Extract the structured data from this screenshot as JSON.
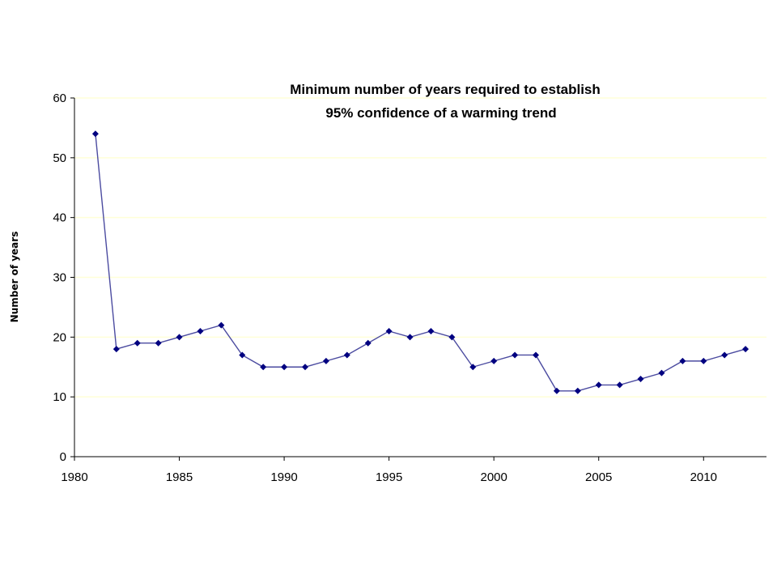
{
  "chart_data": {
    "type": "line",
    "title": "Minimum number of years required to establish\n95% confidence of a warming trend",
    "title_lines": [
      "Minimum number of years required to establish",
      "95% confidence of a warming trend"
    ],
    "xlabel": "",
    "ylabel": "Number of years",
    "xlim": [
      1980,
      2013
    ],
    "ylim": [
      0,
      60
    ],
    "x_ticks": [
      1980,
      1985,
      1990,
      1995,
      2000,
      2005,
      2010
    ],
    "y_ticks": [
      0,
      10,
      20,
      30,
      40,
      50,
      60
    ],
    "grid": "horizontal",
    "legend": "none",
    "colors": {
      "series": "#000080",
      "line": "#4b4ba0",
      "grid": "#ffffd8",
      "axis": "#000000"
    },
    "series": [
      {
        "name": "Minimum number of years",
        "marker": "diamond",
        "x": [
          1981,
          1982,
          1983,
          1984,
          1985,
          1986,
          1987,
          1988,
          1989,
          1990,
          1991,
          1992,
          1993,
          1994,
          1995,
          1996,
          1997,
          1998,
          1999,
          2000,
          2001,
          2002,
          2003,
          2004,
          2005,
          2006,
          2007,
          2008,
          2009,
          2010,
          2011,
          2012
        ],
        "values": [
          54,
          18,
          19,
          19,
          20,
          21,
          22,
          17,
          15,
          15,
          15,
          16,
          17,
          19,
          21,
          20,
          21,
          20,
          15,
          16,
          17,
          17,
          11,
          11,
          12,
          12,
          13,
          14,
          16,
          16,
          17,
          18
        ]
      }
    ]
  }
}
